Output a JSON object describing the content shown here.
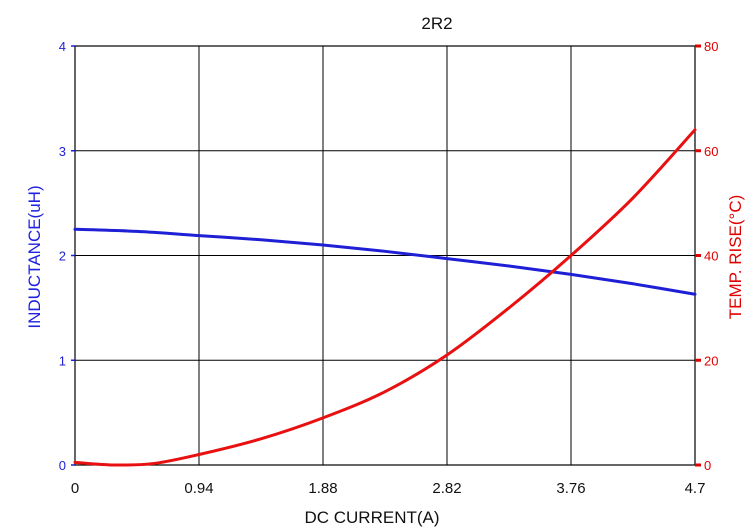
{
  "chart_data": {
    "type": "line",
    "title": "2R2",
    "xlabel": "DC CURRENT(A)",
    "ylabel_left": "INDUCTANCE(uH)",
    "ylabel_right": "TEMP. RISE(°C)",
    "xlim": [
      0,
      4.7
    ],
    "ylim_left": [
      0,
      4
    ],
    "ylim_right": [
      0,
      80
    ],
    "x_ticks": [
      "0",
      "0.94",
      "1.88",
      "2.82",
      "3.76",
      "4.7"
    ],
    "y_ticks_left": [
      "0",
      "1",
      "2",
      "3",
      "4"
    ],
    "y_ticks_right": [
      "0",
      "20",
      "40",
      "60",
      "80"
    ],
    "grid": true,
    "colors": {
      "inductance": "#1f1fd6",
      "temp_rise": "#e81010",
      "grid": "#000000"
    },
    "series": [
      {
        "axis": "left",
        "x": [
          0,
          0.47,
          0.94,
          1.41,
          1.88,
          2.35,
          2.82,
          3.29,
          3.76,
          4.23,
          4.7
        ],
        "values": [
          2.25,
          2.23,
          2.19,
          2.15,
          2.1,
          2.04,
          1.97,
          1.9,
          1.82,
          1.73,
          1.63
        ]
      },
      {
        "axis": "right",
        "x": [
          0,
          0.3,
          0.6,
          0.94,
          1.41,
          1.88,
          2.35,
          2.82,
          3.29,
          3.76,
          4.23,
          4.7
        ],
        "values": [
          0.5,
          0,
          0.3,
          2,
          5,
          9,
          14,
          21,
          30,
          40,
          51,
          64
        ]
      }
    ]
  }
}
